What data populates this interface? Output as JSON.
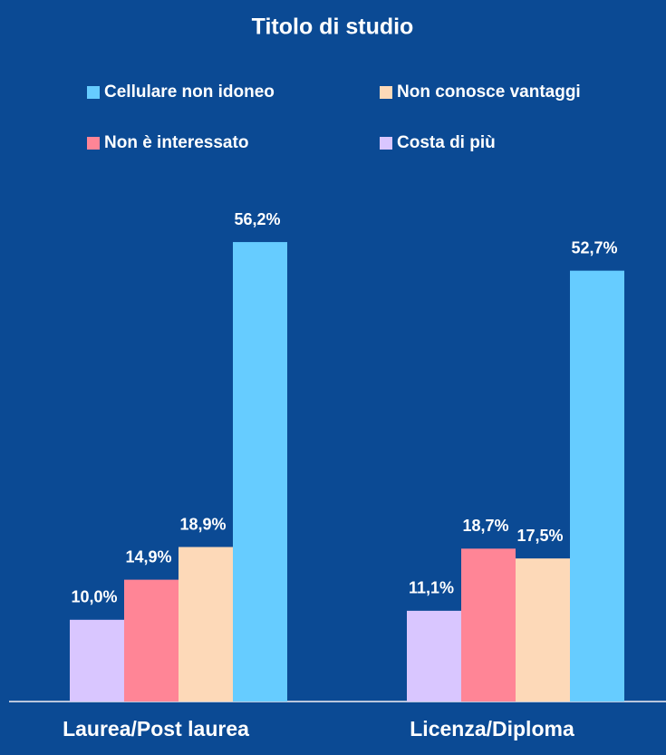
{
  "chart_data": {
    "type": "bar",
    "title": "Titolo di studio",
    "categories": [
      "Laurea/Post laurea",
      "Licenza/Diploma"
    ],
    "series": [
      {
        "name": "Costa di più",
        "color": "#d9c6ff",
        "values": [
          10.0,
          11.1
        ],
        "value_labels": [
          "10,0%",
          "11,1%"
        ]
      },
      {
        "name": "Non è interessato",
        "color": "#ff8596",
        "values": [
          14.9,
          18.7
        ],
        "value_labels": [
          "14,9%",
          "18,7%"
        ]
      },
      {
        "name": "Non conosce vantaggi",
        "color": "#fdd9b8",
        "values": [
          18.9,
          17.5
        ],
        "value_labels": [
          "18,9%",
          "17,5%"
        ]
      },
      {
        "name": "Cellulare non idoneo",
        "color": "#66ccff",
        "values": [
          56.2,
          52.7
        ],
        "value_labels": [
          "56,2%",
          "52,7%"
        ]
      }
    ]
  }
}
